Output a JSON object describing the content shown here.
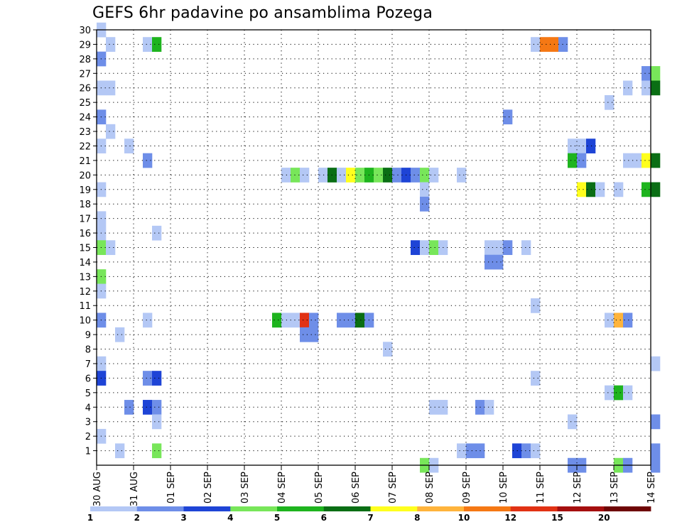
{
  "chart_data": {
    "type": "heatmap",
    "title": "GEFS 6hr padavine po ansamblima Pozega",
    "xlabel": "",
    "ylabel": "",
    "x_tick_labels": [
      "30 AUG",
      "31 AUG",
      "01 SEP",
      "02 SEP",
      "03 SEP",
      "04 SEP",
      "05 SEP",
      "06 SEP",
      "07 SEP",
      "08 SEP",
      "09 SEP",
      "10 SEP",
      "11 SEP",
      "12 SEP",
      "13 SEP",
      "14 SEP"
    ],
    "y_tick_labels": [
      "1",
      "2",
      "3",
      "4",
      "5",
      "6",
      "7",
      "8",
      "9",
      "10",
      "11",
      "12",
      "13",
      "14",
      "15",
      "16",
      "17",
      "18",
      "19",
      "20",
      "21",
      "22",
      "23",
      "24",
      "25",
      "26",
      "27",
      "28",
      "29",
      "30"
    ],
    "ylim": [
      0,
      30
    ],
    "x_steps_per_day": 4,
    "grid": true,
    "colorbar_labels": [
      "1",
      "2",
      "3",
      "4",
      "5",
      "6",
      "7",
      "8",
      "10",
      "12",
      "15",
      "20"
    ],
    "colorbar_colors": [
      "#b4c8f5",
      "#6e8ee8",
      "#1e44d6",
      "#78e65a",
      "#1eb41e",
      "#0a6e14",
      "#ffff1e",
      "#ffb43c",
      "#f57814",
      "#e13214",
      "#a50f0f",
      "#6e0505"
    ],
    "cells": [
      {
        "t": 0,
        "m": 30,
        "c": 0
      },
      {
        "t": 1,
        "m": 29,
        "c": 0
      },
      {
        "t": 5,
        "m": 29,
        "c": 0
      },
      {
        "t": 6,
        "m": 29,
        "c": 4
      },
      {
        "t": 47,
        "m": 29,
        "c": 0
      },
      {
        "t": 48,
        "m": 29,
        "c": 8
      },
      {
        "t": 49,
        "m": 29,
        "c": 8
      },
      {
        "t": 50,
        "m": 29,
        "c": 1
      },
      {
        "t": 0,
        "m": 28,
        "c": 1
      },
      {
        "t": 59,
        "m": 27,
        "c": 1
      },
      {
        "t": 60,
        "m": 27,
        "c": 3
      },
      {
        "t": 0,
        "m": 26,
        "c": 0
      },
      {
        "t": 1,
        "m": 26,
        "c": 0
      },
      {
        "t": 57,
        "m": 26,
        "c": 0
      },
      {
        "t": 59,
        "m": 26,
        "c": 0
      },
      {
        "t": 60,
        "m": 26,
        "c": 5
      },
      {
        "t": 55,
        "m": 25,
        "c": 0
      },
      {
        "t": 0,
        "m": 24,
        "c": 1
      },
      {
        "t": 44,
        "m": 24,
        "c": 1
      },
      {
        "t": 1,
        "m": 23,
        "c": 0
      },
      {
        "t": 0,
        "m": 22,
        "c": 0
      },
      {
        "t": 3,
        "m": 22,
        "c": 0
      },
      {
        "t": 51,
        "m": 22,
        "c": 0
      },
      {
        "t": 52,
        "m": 22,
        "c": 0
      },
      {
        "t": 53,
        "m": 22,
        "c": 2
      },
      {
        "t": 5,
        "m": 21,
        "c": 1
      },
      {
        "t": 51,
        "m": 21,
        "c": 4
      },
      {
        "t": 52,
        "m": 21,
        "c": 1
      },
      {
        "t": 57,
        "m": 21,
        "c": 0
      },
      {
        "t": 58,
        "m": 21,
        "c": 0
      },
      {
        "t": 59,
        "m": 21,
        "c": 6
      },
      {
        "t": 60,
        "m": 21,
        "c": 5
      },
      {
        "t": 20,
        "m": 20,
        "c": 0
      },
      {
        "t": 21,
        "m": 20,
        "c": 3
      },
      {
        "t": 22,
        "m": 20,
        "c": 0
      },
      {
        "t": 24,
        "m": 20,
        "c": 0
      },
      {
        "t": 25,
        "m": 20,
        "c": 5
      },
      {
        "t": 26,
        "m": 20,
        "c": 0
      },
      {
        "t": 27,
        "m": 20,
        "c": 6
      },
      {
        "t": 28,
        "m": 20,
        "c": 3
      },
      {
        "t": 29,
        "m": 20,
        "c": 4
      },
      {
        "t": 30,
        "m": 20,
        "c": 3
      },
      {
        "t": 31,
        "m": 20,
        "c": 5
      },
      {
        "t": 32,
        "m": 20,
        "c": 1
      },
      {
        "t": 33,
        "m": 20,
        "c": 2
      },
      {
        "t": 34,
        "m": 20,
        "c": 1
      },
      {
        "t": 35,
        "m": 20,
        "c": 3
      },
      {
        "t": 36,
        "m": 20,
        "c": 0
      },
      {
        "t": 39,
        "m": 20,
        "c": 0
      },
      {
        "t": 0,
        "m": 19,
        "c": 0
      },
      {
        "t": 35,
        "m": 19,
        "c": 0
      },
      {
        "t": 52,
        "m": 19,
        "c": 6
      },
      {
        "t": 53,
        "m": 19,
        "c": 5
      },
      {
        "t": 54,
        "m": 19,
        "c": 0
      },
      {
        "t": 56,
        "m": 19,
        "c": 0
      },
      {
        "t": 59,
        "m": 19,
        "c": 4
      },
      {
        "t": 60,
        "m": 19,
        "c": 5
      },
      {
        "t": 35,
        "m": 18,
        "c": 1
      },
      {
        "t": 0,
        "m": 17,
        "c": 0
      },
      {
        "t": 0,
        "m": 16,
        "c": 0
      },
      {
        "t": 6,
        "m": 16,
        "c": 0
      },
      {
        "t": 0,
        "m": 15,
        "c": 3
      },
      {
        "t": 1,
        "m": 15,
        "c": 0
      },
      {
        "t": 34,
        "m": 15,
        "c": 2
      },
      {
        "t": 35,
        "m": 15,
        "c": 0
      },
      {
        "t": 36,
        "m": 15,
        "c": 3
      },
      {
        "t": 37,
        "m": 15,
        "c": 0
      },
      {
        "t": 42,
        "m": 15,
        "c": 0
      },
      {
        "t": 43,
        "m": 15,
        "c": 0
      },
      {
        "t": 44,
        "m": 15,
        "c": 1
      },
      {
        "t": 46,
        "m": 15,
        "c": 0
      },
      {
        "t": 42,
        "m": 14,
        "c": 1
      },
      {
        "t": 43,
        "m": 14,
        "c": 1
      },
      {
        "t": 0,
        "m": 13,
        "c": 3
      },
      {
        "t": 0,
        "m": 12,
        "c": 0
      },
      {
        "t": 47,
        "m": 11,
        "c": 0
      },
      {
        "t": 0,
        "m": 10,
        "c": 1
      },
      {
        "t": 5,
        "m": 10,
        "c": 0
      },
      {
        "t": 19,
        "m": 10,
        "c": 4
      },
      {
        "t": 20,
        "m": 10,
        "c": 0
      },
      {
        "t": 21,
        "m": 10,
        "c": 0
      },
      {
        "t": 22,
        "m": 10,
        "c": 9
      },
      {
        "t": 23,
        "m": 10,
        "c": 1
      },
      {
        "t": 26,
        "m": 10,
        "c": 1
      },
      {
        "t": 27,
        "m": 10,
        "c": 1
      },
      {
        "t": 28,
        "m": 10,
        "c": 5
      },
      {
        "t": 29,
        "m": 10,
        "c": 1
      },
      {
        "t": 55,
        "m": 10,
        "c": 0
      },
      {
        "t": 56,
        "m": 10,
        "c": 7
      },
      {
        "t": 57,
        "m": 10,
        "c": 1
      },
      {
        "t": 2,
        "m": 9,
        "c": 0
      },
      {
        "t": 22,
        "m": 9,
        "c": 1
      },
      {
        "t": 23,
        "m": 9,
        "c": 1
      },
      {
        "t": 31,
        "m": 8,
        "c": 0
      },
      {
        "t": 0,
        "m": 7,
        "c": 0
      },
      {
        "t": 60,
        "m": 7,
        "c": 0
      },
      {
        "t": 0,
        "m": 6,
        "c": 2
      },
      {
        "t": 5,
        "m": 6,
        "c": 1
      },
      {
        "t": 6,
        "m": 6,
        "c": 2
      },
      {
        "t": 47,
        "m": 6,
        "c": 0
      },
      {
        "t": 55,
        "m": 5,
        "c": 0
      },
      {
        "t": 56,
        "m": 5,
        "c": 4
      },
      {
        "t": 57,
        "m": 5,
        "c": 0
      },
      {
        "t": 3,
        "m": 4,
        "c": 1
      },
      {
        "t": 5,
        "m": 4,
        "c": 2
      },
      {
        "t": 6,
        "m": 4,
        "c": 1
      },
      {
        "t": 36,
        "m": 4,
        "c": 0
      },
      {
        "t": 37,
        "m": 4,
        "c": 0
      },
      {
        "t": 41,
        "m": 4,
        "c": 1
      },
      {
        "t": 42,
        "m": 4,
        "c": 0
      },
      {
        "t": 6,
        "m": 3,
        "c": 0
      },
      {
        "t": 51,
        "m": 3,
        "c": 0
      },
      {
        "t": 60,
        "m": 3,
        "c": 1
      },
      {
        "t": 0,
        "m": 2,
        "c": 0
      },
      {
        "t": 2,
        "m": 1,
        "c": 0
      },
      {
        "t": 6,
        "m": 1,
        "c": 3
      },
      {
        "t": 39,
        "m": 1,
        "c": 0
      },
      {
        "t": 40,
        "m": 1,
        "c": 1
      },
      {
        "t": 41,
        "m": 1,
        "c": 1
      },
      {
        "t": 45,
        "m": 1,
        "c": 2
      },
      {
        "t": 46,
        "m": 1,
        "c": 1
      },
      {
        "t": 47,
        "m": 1,
        "c": 0
      },
      {
        "t": 60,
        "m": 1,
        "c": 1
      },
      {
        "t": 35,
        "m": 0,
        "c": 3
      },
      {
        "t": 36,
        "m": 0,
        "c": 0
      },
      {
        "t": 51,
        "m": 0,
        "c": 1
      },
      {
        "t": 52,
        "m": 0,
        "c": 1
      },
      {
        "t": 56,
        "m": 0,
        "c": 3
      },
      {
        "t": 57,
        "m": 0,
        "c": 1
      },
      {
        "t": 60,
        "m": 0,
        "c": 1
      }
    ]
  }
}
